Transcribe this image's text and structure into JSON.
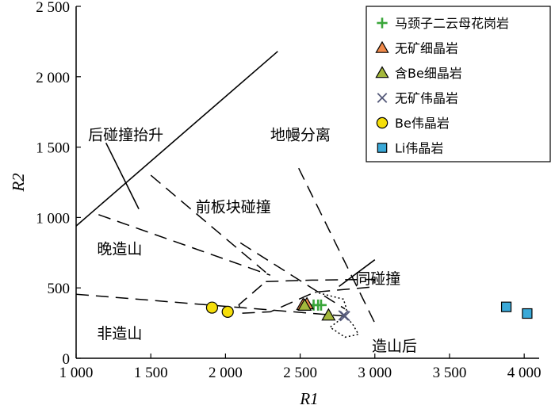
{
  "chart_data": {
    "type": "scatter",
    "xlabel": "R1",
    "ylabel": "R2",
    "xlim": [
      1000,
      4100
    ],
    "ylim": [
      0,
      2500
    ],
    "x_ticks": [
      1000,
      1500,
      2000,
      2500,
      3000,
      3500,
      4000
    ],
    "x_tick_labels": [
      "1 000",
      "1 500",
      "2 000",
      "2 500",
      "3 000",
      "3 500",
      "4 000"
    ],
    "y_ticks": [
      0,
      500,
      1000,
      1500,
      2000,
      2500
    ],
    "y_tick_labels": [
      "0",
      "500",
      "1 000",
      "1 500",
      "2 000",
      "2 500"
    ],
    "legend_position": "top-right",
    "series": [
      {
        "name": "马颈子二云母花岗岩",
        "marker": "plus",
        "color": "#3aa63a",
        "points": [
          [
            2590,
            378
          ],
          [
            2620,
            378
          ],
          [
            2640,
            378
          ]
        ]
      },
      {
        "name": "无矿细晶岩",
        "marker": "triangle",
        "color": "#f08a4b",
        "points": [
          [
            2520,
            380
          ],
          [
            2545,
            385
          ]
        ]
      },
      {
        "name": "含Be细晶岩",
        "marker": "triangle",
        "color": "#a4b83c",
        "points": [
          [
            2530,
            375
          ],
          [
            2690,
            305
          ]
        ]
      },
      {
        "name": "无矿伟晶岩",
        "marker": "cross",
        "color": "#555a7a",
        "points": [
          [
            2790,
            305
          ],
          [
            2800,
            300
          ]
        ]
      },
      {
        "name": "Be伟晶岩",
        "marker": "circle",
        "color": "#f5de0a",
        "points": [
          [
            1910,
            360
          ],
          [
            2015,
            330
          ]
        ]
      },
      {
        "name": "Li伟晶岩",
        "marker": "square",
        "color": "#3aa9d8",
        "points": [
          [
            3880,
            365
          ],
          [
            4020,
            318
          ]
        ]
      }
    ],
    "region_labels": [
      {
        "text": "后碰撞抬升",
        "x": 1080,
        "y": 1550
      },
      {
        "text": "地幔分离",
        "x": 2300,
        "y": 1550
      },
      {
        "text": "前板块碰撞",
        "x": 1800,
        "y": 1040
      },
      {
        "text": "晚造山",
        "x": 1140,
        "y": 740
      },
      {
        "text": "同碰撞",
        "x": 2870,
        "y": 530
      },
      {
        "text": "非造山",
        "x": 1140,
        "y": 140
      },
      {
        "text": "造山后",
        "x": 2980,
        "y": 50
      }
    ],
    "boundary_lines": [
      {
        "style": "solid",
        "points": [
          [
            1000,
            940
          ],
          [
            2350,
            2180
          ]
        ]
      },
      {
        "style": "solid",
        "points": [
          [
            1200,
            1530
          ],
          [
            1420,
            1060
          ]
        ]
      },
      {
        "style": "solid",
        "points": [
          [
            2760,
            510
          ],
          [
            3000,
            700
          ]
        ]
      },
      {
        "style": "dashed",
        "points": [
          [
            2100,
            820
          ],
          [
            2800,
            350
          ]
        ]
      },
      {
        "style": "dashed",
        "points": [
          [
            2490,
            1350
          ],
          [
            3000,
            250
          ]
        ]
      },
      {
        "style": "dashed",
        "points": [
          [
            1500,
            1300
          ],
          [
            2270,
            610
          ]
        ]
      },
      {
        "style": "dashed",
        "points": [
          [
            1150,
            1020
          ],
          [
            2300,
            590
          ]
        ]
      },
      {
        "style": "dashed",
        "points": [
          [
            1000,
            455
          ],
          [
            2800,
            300
          ]
        ]
      },
      {
        "style": "dashed",
        "points": [
          [
            2270,
            545
          ],
          [
            2580,
            555
          ],
          [
            3000,
            560
          ],
          [
            2970,
            505
          ],
          [
            2600,
            470
          ],
          [
            2300,
            330
          ],
          [
            2110,
            320
          ],
          [
            2090,
            380
          ],
          [
            2270,
            545
          ]
        ]
      },
      {
        "style": "dotted",
        "points": [
          [
            2600,
            470
          ],
          [
            2790,
            420
          ],
          [
            2810,
            350
          ],
          [
            2800,
            300
          ],
          [
            2700,
            220
          ],
          [
            2800,
            150
          ],
          [
            2890,
            170
          ],
          [
            2850,
            245
          ],
          [
            2800,
            300
          ]
        ]
      }
    ]
  }
}
